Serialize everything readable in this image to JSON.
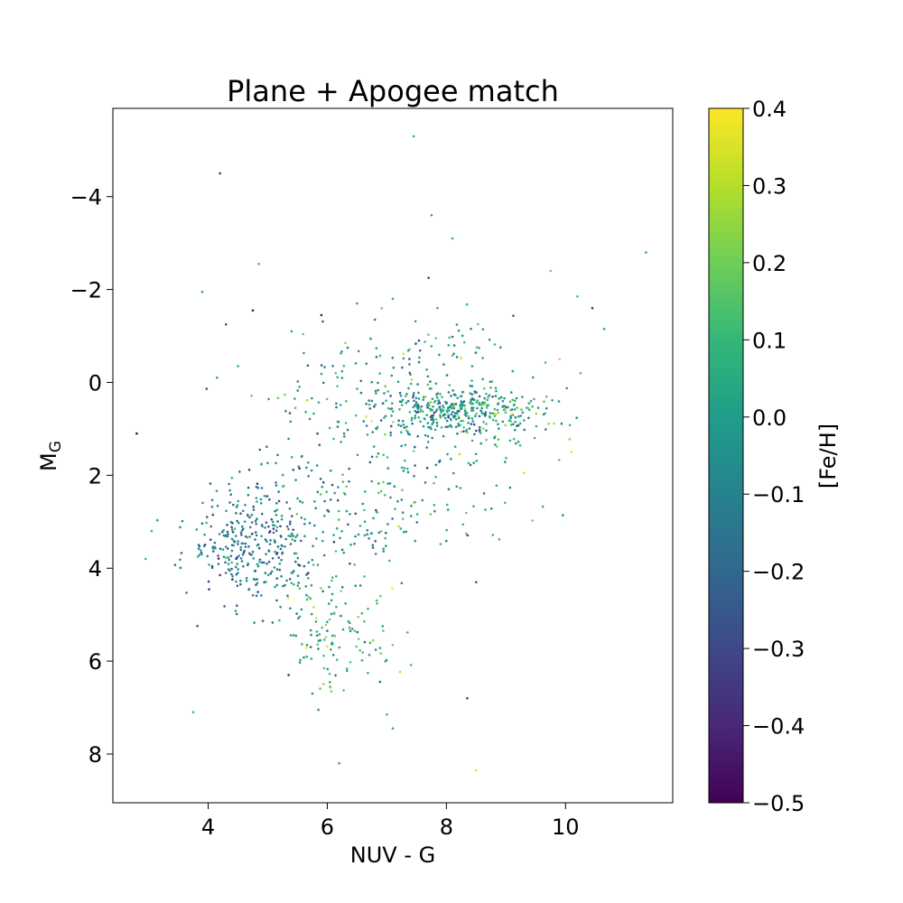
{
  "chart_data": {
    "type": "scatter",
    "title": "Plane + Apogee match",
    "xlabel": "NUV - G",
    "ylabel_main": "M",
    "ylabel_sub": "G",
    "colorbar_label": "[Fe/H]",
    "colormap": "viridis",
    "colormap_stops": [
      "#440154",
      "#482878",
      "#3e4989",
      "#31688e",
      "#26828e",
      "#1f9e89",
      "#35b779",
      "#6ece58",
      "#b5de2b",
      "#fde725"
    ],
    "xlim": [
      2.4,
      11.8
    ],
    "ylim": [
      9.05,
      -5.9
    ],
    "y_inverted": true,
    "clim": [
      -0.5,
      0.4
    ],
    "x_ticks": [
      4,
      6,
      8,
      10
    ],
    "x_tick_labels": [
      "4",
      "6",
      "8",
      "10"
    ],
    "y_ticks": [
      -4,
      -2,
      0,
      2,
      4,
      6,
      8
    ],
    "y_tick_labels": [
      "−4",
      "−2",
      "0",
      "2",
      "4",
      "6",
      "8"
    ],
    "colorbar_ticks": [
      -0.5,
      -0.4,
      -0.3,
      -0.2,
      -0.1,
      0.0,
      0.1,
      0.2,
      0.3,
      0.4
    ],
    "colorbar_tick_labels": [
      "−0.5",
      "−0.4",
      "−0.3",
      "−0.2",
      "−0.1",
      "0.0",
      "0.1",
      "0.2",
      "0.3",
      "0.4"
    ],
    "points": [
      {
        "x": 7.45,
        "y": -5.3,
        "c": 0.05
      },
      {
        "x": 4.2,
        "y": -4.5,
        "c": -0.4
      },
      {
        "x": 7.75,
        "y": -3.6,
        "c": 0.0
      },
      {
        "x": 8.1,
        "y": -3.1,
        "c": 0.05
      },
      {
        "x": 11.35,
        "y": -2.8,
        "c": 0.0
      },
      {
        "x": 4.85,
        "y": -2.55,
        "c": 0.1
      },
      {
        "x": 9.75,
        "y": -2.4,
        "c": 0.2
      },
      {
        "x": 7.7,
        "y": -2.25,
        "c": -0.3
      },
      {
        "x": 3.9,
        "y": -1.95,
        "c": 0.05
      },
      {
        "x": 10.2,
        "y": -1.85,
        "c": 0.1
      },
      {
        "x": 10.45,
        "y": -1.6,
        "c": -0.4
      },
      {
        "x": 4.75,
        "y": -1.55,
        "c": -0.45
      },
      {
        "x": 4.3,
        "y": -1.25,
        "c": -0.3
      },
      {
        "x": 5.9,
        "y": -1.45,
        "c": -0.45
      },
      {
        "x": 10.65,
        "y": -1.15,
        "c": 0.0
      },
      {
        "x": 6.5,
        "y": -1.7,
        "c": 0.0
      },
      {
        "x": 7.1,
        "y": -1.8,
        "c": 0.05
      },
      {
        "x": 7.85,
        "y": -1.6,
        "c": 0.1
      },
      {
        "x": 9.9,
        "y": -0.5,
        "c": 0.3
      },
      {
        "x": 10.25,
        "y": -0.2,
        "c": 0.15
      },
      {
        "x": 4.5,
        "y": -0.35,
        "c": 0.05
      },
      {
        "x": 4.15,
        "y": -0.1,
        "c": 0.0
      },
      {
        "x": 5.4,
        "y": -1.1,
        "c": 0.0
      },
      {
        "x": 6.8,
        "y": -1.35,
        "c": -0.2
      },
      {
        "x": 2.8,
        "y": 1.1,
        "c": -0.5
      },
      {
        "x": 3.05,
        "y": 3.2,
        "c": 0.1
      },
      {
        "x": 2.95,
        "y": 3.8,
        "c": 0.1
      },
      {
        "x": 3.75,
        "y": 7.1,
        "c": 0.1
      },
      {
        "x": 5.85,
        "y": 7.05,
        "c": 0.0
      },
      {
        "x": 5.35,
        "y": 6.3,
        "c": -0.45
      },
      {
        "x": 5.75,
        "y": 6.7,
        "c": 0.0
      },
      {
        "x": 6.2,
        "y": 8.2,
        "c": 0.0
      },
      {
        "x": 7.0,
        "y": 7.15,
        "c": 0.1
      },
      {
        "x": 7.1,
        "y": 7.45,
        "c": 0.05
      },
      {
        "x": 8.35,
        "y": 6.8,
        "c": -0.35
      },
      {
        "x": 8.5,
        "y": 8.35,
        "c": 0.35
      },
      {
        "x": 8.5,
        "y": 4.3,
        "c": -0.25
      },
      {
        "x": 10.1,
        "y": 1.5,
        "c": 0.35
      },
      {
        "x": 9.3,
        "y": 1.95,
        "c": 0.35
      },
      {
        "x": 7.2,
        "y": 3.1,
        "c": 0.3
      }
    ],
    "clusters": [
      {
        "cx": 4.8,
        "cy": 3.5,
        "sx": 0.55,
        "sy": 0.6,
        "n": 330,
        "cmean": -0.12,
        "csd": 0.13,
        "seed": 11
      },
      {
        "cx": 5.9,
        "cy": 4.9,
        "sx": 0.45,
        "sy": 0.55,
        "n": 90,
        "cmean": 0.05,
        "csd": 0.12,
        "seed": 23
      },
      {
        "cx": 6.6,
        "cy": 5.8,
        "sx": 0.5,
        "sy": 0.4,
        "n": 45,
        "cmean": 0.08,
        "csd": 0.12,
        "seed": 37
      },
      {
        "cx": 5.6,
        "cy": 2.5,
        "sx": 0.6,
        "sy": 0.6,
        "n": 60,
        "cmean": -0.08,
        "csd": 0.14,
        "seed": 41
      },
      {
        "cx": 8.1,
        "cy": 0.65,
        "sx": 0.7,
        "sy": 0.3,
        "n": 330,
        "cmean": -0.02,
        "csd": 0.14,
        "seed": 53
      },
      {
        "cx": 7.6,
        "cy": -0.3,
        "sx": 1.1,
        "sy": 0.55,
        "n": 120,
        "cmean": 0.0,
        "csd": 0.14,
        "seed": 61
      },
      {
        "cx": 7.6,
        "cy": 2.2,
        "sx": 1.0,
        "sy": 0.8,
        "n": 110,
        "cmean": 0.0,
        "csd": 0.15,
        "seed": 71
      },
      {
        "cx": 6.2,
        "cy": 0.5,
        "sx": 0.8,
        "sy": 0.7,
        "n": 60,
        "cmean": -0.05,
        "csd": 0.14,
        "seed": 83
      },
      {
        "cx": 6.7,
        "cy": 3.0,
        "sx": 0.4,
        "sy": 0.7,
        "n": 40,
        "cmean": -0.05,
        "csd": 0.15,
        "seed": 97
      },
      {
        "cx": 9.0,
        "cy": 0.7,
        "sx": 0.45,
        "sy": 0.35,
        "n": 70,
        "cmean": 0.08,
        "csd": 0.12,
        "seed": 103
      }
    ]
  }
}
